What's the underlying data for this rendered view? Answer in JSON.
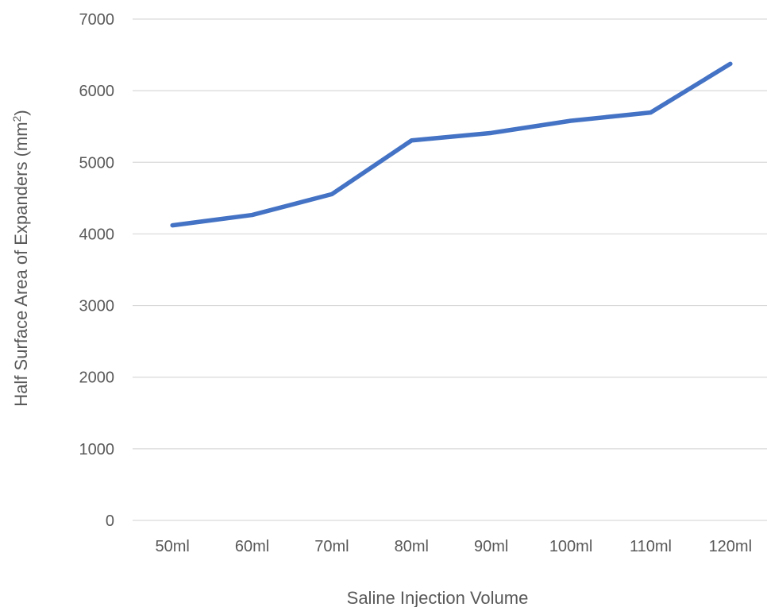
{
  "chart_data": {
    "type": "line",
    "title": "",
    "xlabel": "Saline Injection Volume",
    "ylabel": "Half Surface Area of Expanders (mm",
    "ylabel_superscript": "2",
    "ylabel_suffix": ")",
    "categories": [
      "50ml",
      "60ml",
      "70ml",
      "80ml",
      "90ml",
      "100ml",
      "110ml",
      "120ml"
    ],
    "series": [
      {
        "values": [
          4120,
          4265,
          4555,
          5305,
          5410,
          5580,
          5695,
          6375
        ],
        "color": "#4472c4"
      }
    ],
    "ylim": [
      0,
      7000
    ],
    "yticks": [
      0,
      1000,
      2000,
      3000,
      4000,
      5000,
      6000,
      7000
    ],
    "grid": true,
    "legend": "none"
  }
}
